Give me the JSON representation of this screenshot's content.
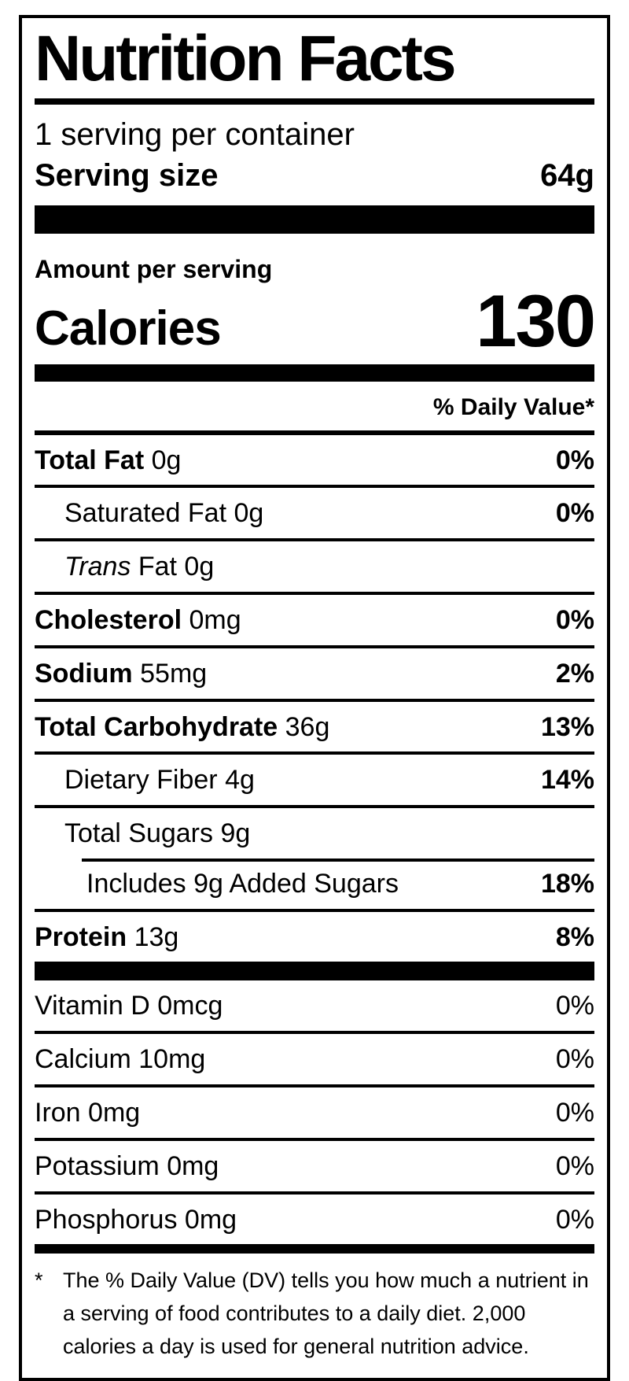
{
  "colors": {
    "ink": "#000000",
    "background": "#ffffff"
  },
  "label": {
    "title": "Nutrition Facts",
    "servings_per_container": "1 serving per container",
    "serving_size_label": "Serving size",
    "serving_size_value": "64g",
    "amount_per_serving": "Amount per serving",
    "calories_label": "Calories",
    "calories_value": "130",
    "daily_value_header": "% Daily Value*",
    "nutrients": [
      {
        "name": "Total Fat",
        "amount": "0g",
        "pct": "0%"
      },
      {
        "name": "Saturated Fat",
        "amount": "0g",
        "pct": "0%"
      },
      {
        "name_italic": "Trans",
        "name": "Fat",
        "amount": "0g",
        "pct": ""
      },
      {
        "name": "Cholesterol",
        "amount": "0mg",
        "pct": "0%"
      },
      {
        "name": "Sodium",
        "amount": "55mg",
        "pct": "2%"
      },
      {
        "name": "Total Carbohydrate",
        "amount": "36g",
        "pct": "13%"
      },
      {
        "name": "Dietary Fiber",
        "amount": "4g",
        "pct": "14%"
      },
      {
        "name": "Total Sugars",
        "amount": "9g",
        "pct": ""
      },
      {
        "name": "Includes 9g Added Sugars",
        "amount": "",
        "pct": "18%"
      },
      {
        "name": "Protein",
        "amount": "13g",
        "pct": "8%"
      }
    ],
    "micronutrients": [
      {
        "name": "Vitamin D",
        "amount": "0mcg",
        "pct": "0%"
      },
      {
        "name": "Calcium",
        "amount": "10mg",
        "pct": "0%"
      },
      {
        "name": "Iron",
        "amount": "0mg",
        "pct": "0%"
      },
      {
        "name": "Potassium",
        "amount": "0mg",
        "pct": "0%"
      },
      {
        "name": "Phosphorus",
        "amount": "0mg",
        "pct": "0%"
      }
    ],
    "footnote_symbol": "*",
    "footnote": "The % Daily Value (DV) tells you how much a nutrient in a serving of food contributes to a daily diet. 2,000 calories a day is used for general nutrition advice."
  }
}
